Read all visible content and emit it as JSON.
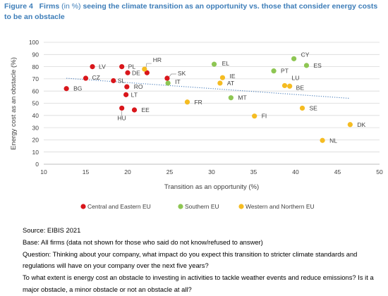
{
  "figure": {
    "label": "Figure 4",
    "title_part1": "Firms",
    "title_part2": "(in %)",
    "title_part3": "seeing the climate transition as an opportunity vs. those that consider energy costs to be an obstacle"
  },
  "chart_data": {
    "type": "scatter",
    "xlabel": "Transition as an opportunity (%)",
    "ylabel": "Energy cost as an obstacle (%)",
    "xlim": [
      10,
      50
    ],
    "ylim": [
      0,
      100
    ],
    "xticks": [
      10,
      15,
      20,
      25,
      30,
      35,
      40,
      45,
      50
    ],
    "yticks": [
      0,
      10,
      20,
      30,
      40,
      50,
      60,
      70,
      80,
      90,
      100
    ],
    "grid": "horizontal",
    "legend_position": "bottom",
    "trendline": {
      "style": "dotted",
      "from": [
        12.7,
        70.5
      ],
      "to": [
        46.5,
        54
      ]
    },
    "series": [
      {
        "name": "Central and Eastern EU",
        "color": "#d9161b",
        "points": [
          {
            "label": "LV",
            "x": 15.8,
            "y": 80
          },
          {
            "label": "PL",
            "x": 19.3,
            "y": 80
          },
          {
            "label": "DE",
            "x": 20.0,
            "y": 75
          },
          {
            "label": "CZ",
            "x": 15.0,
            "y": 70.5
          },
          {
            "label": "SL",
            "x": 18.3,
            "y": 68.5
          },
          {
            "label": "SK",
            "x": 24.7,
            "y": 70.5
          },
          {
            "label": "BG",
            "x": 12.7,
            "y": 62
          },
          {
            "label": "RO",
            "x": 19.9,
            "y": 63.5
          },
          {
            "label": "LT",
            "x": 19.8,
            "y": 57
          },
          {
            "label": "HU",
            "x": 19.3,
            "y": 46
          },
          {
            "label": "EE",
            "x": 20.8,
            "y": 44.5
          },
          {
            "label": "HR",
            "x": 22.3,
            "y": 75
          }
        ]
      },
      {
        "name": "Southern EU",
        "color": "#8ec653",
        "points": [
          {
            "label": "CY",
            "x": 39.8,
            "y": 86.5
          },
          {
            "label": "ES",
            "x": 41.3,
            "y": 81
          },
          {
            "label": "EL",
            "x": 30.3,
            "y": 82
          },
          {
            "label": "PT",
            "x": 37.4,
            "y": 76.5
          },
          {
            "label": "IT",
            "x": 24.8,
            "y": 66.5
          },
          {
            "label": "MT",
            "x": 32.3,
            "y": 54.5
          }
        ]
      },
      {
        "name": "Western and Northern EU",
        "color": "#f5bc22",
        "points": [
          {
            "label": "HR",
            "x": 22.0,
            "y": 78
          },
          {
            "label": "IE",
            "x": 31.3,
            "y": 71
          },
          {
            "label": "AT",
            "x": 31.0,
            "y": 66.5
          },
          {
            "label": "LU",
            "x": 38.7,
            "y": 64.5
          },
          {
            "label": "BE",
            "x": 39.3,
            "y": 64
          },
          {
            "label": "FR",
            "x": 27.1,
            "y": 51
          },
          {
            "label": "SE",
            "x": 40.8,
            "y": 46
          },
          {
            "label": "FI",
            "x": 35.1,
            "y": 39.5
          },
          {
            "label": "DK",
            "x": 46.5,
            "y": 32.5
          },
          {
            "label": "NL",
            "x": 43.2,
            "y": 19.5
          }
        ]
      }
    ]
  },
  "notes": {
    "source": "Source: EIBIS 2021",
    "base": "Base: All firms (data not shown for those who said do not know/refused to answer)",
    "question1": "Question: Thinking about your company, what impact do you expect this transition to stricter climate standards and regulations will have on your company over the next five years?",
    "question2": "To what extent is energy cost an obstacle to investing in activities to tackle weather events and reduce emissions? Is it a major obstacle, a minor obstacle or not an obstacle at all?"
  }
}
